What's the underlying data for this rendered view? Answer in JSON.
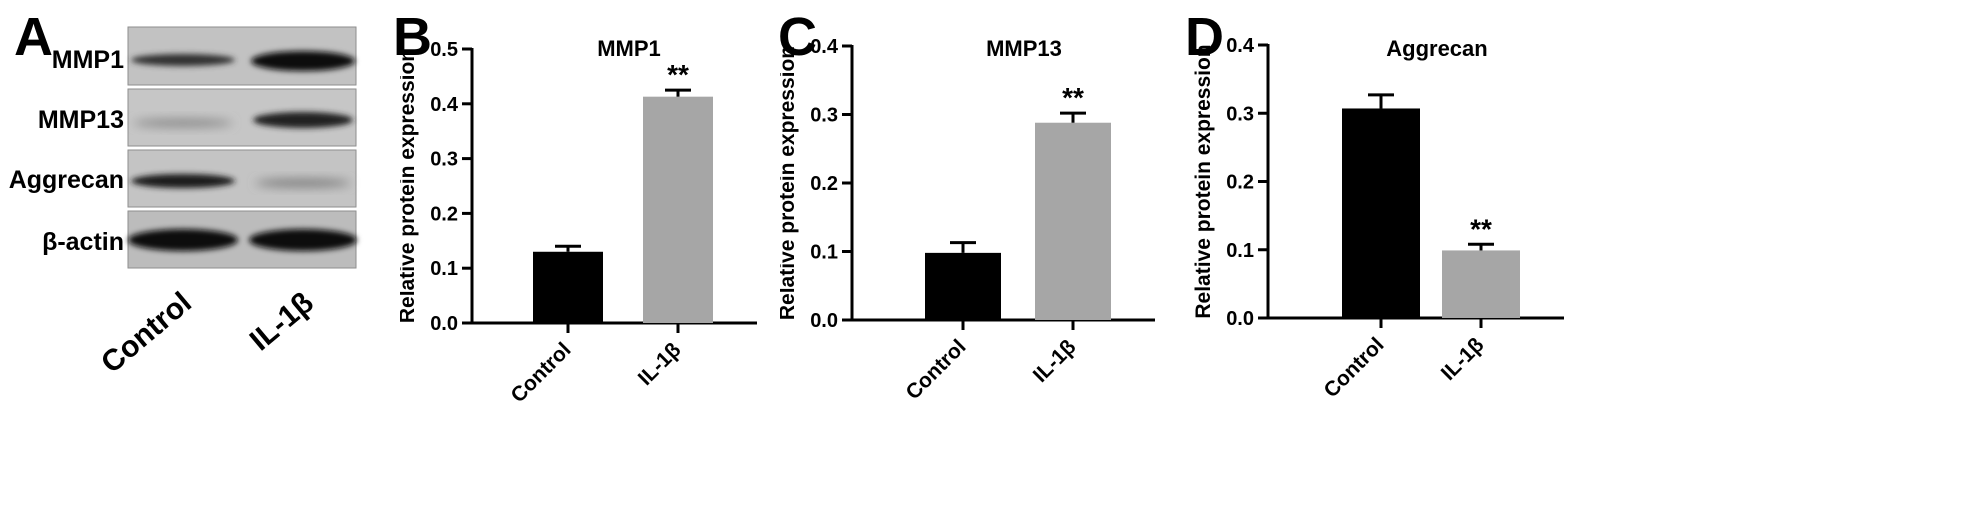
{
  "panels": {
    "a": {
      "letter": "A",
      "rows": [
        "MMP1",
        "MMP13",
        "Aggrecan",
        "β-actin"
      ],
      "lanes": [
        "Control",
        "IL-1β"
      ]
    },
    "b": {
      "letter": "B"
    },
    "c": {
      "letter": "C"
    },
    "d": {
      "letter": "D"
    }
  },
  "colors": {
    "control": "#000000",
    "treated": "#a6a6a6"
  },
  "chart_data": [
    {
      "type": "bar",
      "title": "MMP1",
      "categories": [
        "Control",
        "IL-1β"
      ],
      "values": [
        0.13,
        0.413
      ],
      "errors": [
        0.01,
        0.012
      ],
      "significance": [
        "",
        "**"
      ],
      "ylabel": "Relative protein expression",
      "ylim": [
        0,
        0.5
      ],
      "yticks": [
        "0.0",
        "0.1",
        "0.2",
        "0.3",
        "0.4",
        "0.5"
      ],
      "xlabel": ""
    },
    {
      "type": "bar",
      "title": "MMP13",
      "categories": [
        "Control",
        "IL-1β"
      ],
      "values": [
        0.098,
        0.288
      ],
      "errors": [
        0.015,
        0.014
      ],
      "significance": [
        "",
        "**"
      ],
      "ylabel": "Relative protein expression",
      "ylim": [
        0,
        0.4
      ],
      "yticks": [
        "0.0",
        "0.1",
        "0.2",
        "0.3",
        "0.4"
      ],
      "xlabel": ""
    },
    {
      "type": "bar",
      "title": "Aggrecan",
      "categories": [
        "Control",
        "IL-1β"
      ],
      "values": [
        0.307,
        0.099
      ],
      "errors": [
        0.02,
        0.009
      ],
      "significance": [
        "",
        "**"
      ],
      "ylabel": "Relative protein expression",
      "ylim": [
        0,
        0.4
      ],
      "yticks": [
        "0.0",
        "0.1",
        "0.2",
        "0.3",
        "0.4"
      ],
      "xlabel": ""
    }
  ]
}
